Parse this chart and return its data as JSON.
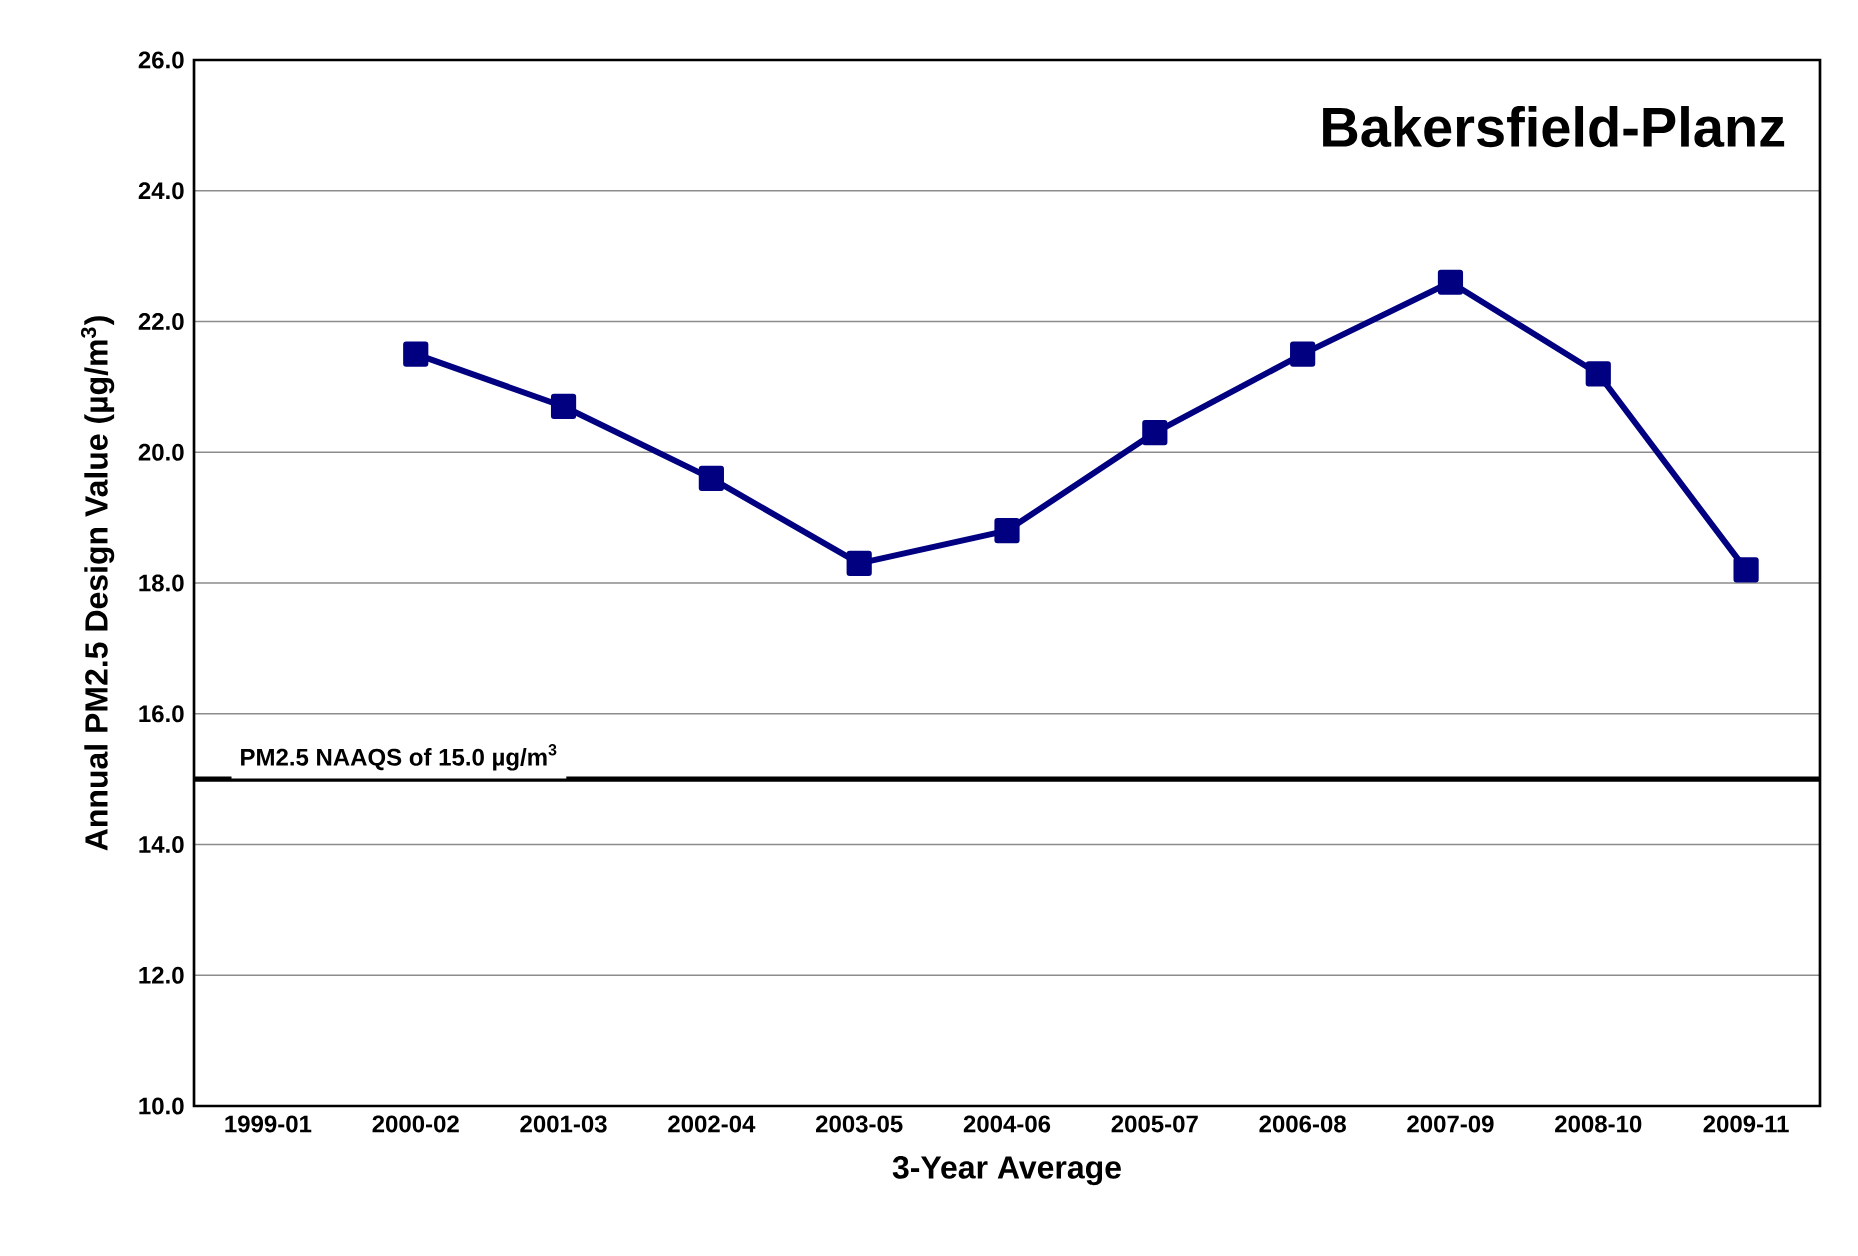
{
  "chart_data": {
    "type": "line",
    "title": "Bakersfield-Planz",
    "xlabel": "3-Year Average",
    "ylabel": "Annual PM2.5 Design Value (µg/m$^{3}$)",
    "categories": [
      "1999-01",
      "2000-02",
      "2001-03",
      "2002-04",
      "2003-05",
      "2004-06",
      "2005-07",
      "2006-08",
      "2007-09",
      "2008-10",
      "2009-11"
    ],
    "series": [
      {
        "color": "#000080",
        "values": [
          null,
          21.5,
          20.7,
          19.6,
          18.3,
          18.8,
          20.3,
          21.5,
          22.6,
          21.2,
          18.2
        ]
      }
    ],
    "ylim": [
      10,
      26
    ],
    "yticks": [
      {
        "value": 10,
        "label": "10.0"
      },
      {
        "value": 12,
        "label": "12.0"
      },
      {
        "value": 14,
        "label": "14.0"
      },
      {
        "value": 16,
        "label": "16.0"
      },
      {
        "value": 18,
        "label": "18.0"
      },
      {
        "value": 20,
        "label": "20.0"
      },
      {
        "value": 22,
        "label": "22.0"
      },
      {
        "value": 24,
        "label": "24.0"
      },
      {
        "value": 26,
        "label": "26.0"
      }
    ],
    "ref_lines": [
      {
        "axis": "y",
        "value": 15,
        "label": "PM2.5 NAAQS of 15.0 µg/m$^{3}$",
        "color": "#000000"
      }
    ],
    "grid": "y",
    "marker": "square"
  }
}
